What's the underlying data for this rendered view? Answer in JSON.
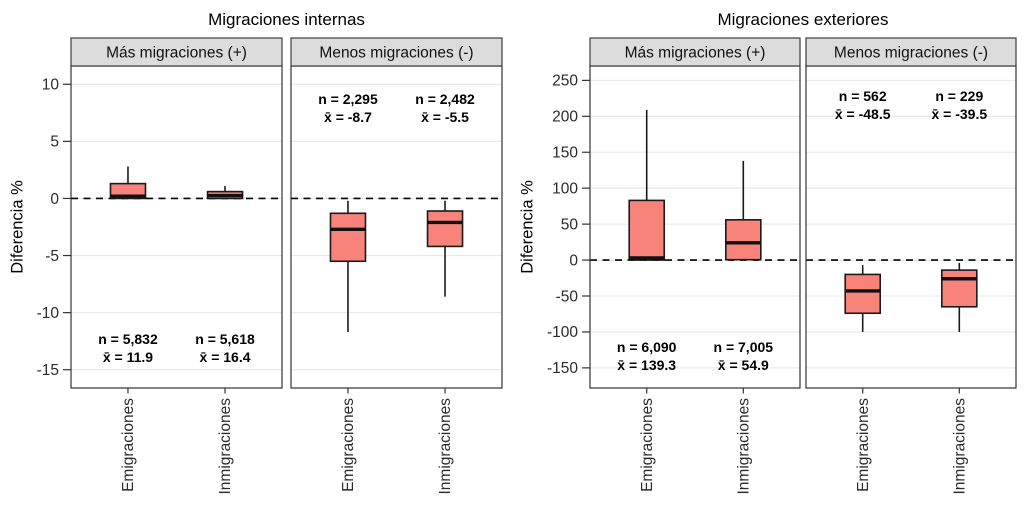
{
  "figure": {
    "background": "#ffffff",
    "box_fill": "#f8837a",
    "box_stroke": "#1a1a1a",
    "median_stroke": "#111111",
    "strip_fill": "#dcdcdc",
    "strip_stroke": "#3c3c3c",
    "strip_text_color": "#111111",
    "panel_stroke": "#333333",
    "grid_color": "#e8e8e8",
    "zero_line_color": "#000000",
    "axis_text_color": "#2b2b2b",
    "axis_tick_color": "#333333",
    "title_color": "#000000",
    "annotation_color": "#000000"
  },
  "chart_data": [
    {
      "type": "boxplot",
      "title": "Migraciones internas",
      "ylabel": "Diferencia %",
      "xlabel": "",
      "ylim": [
        -16.6,
        11.6
      ],
      "yticks": [
        10,
        5,
        0,
        -5,
        -10,
        -15
      ],
      "grid": "major-horizontal",
      "legend": "none",
      "reference_line": {
        "y": 0,
        "style": "dashed"
      },
      "categories": [
        "Emigraciones",
        "Inmigraciones"
      ],
      "facets": [
        {
          "label": "Más migraciones (+)",
          "annotation_position": "bottom",
          "boxes": [
            {
              "category": "Emigraciones",
              "whisker_low": 0,
              "q1": 0,
              "median": 0.2,
              "q3": 1.3,
              "whisker_high": 2.8,
              "annotation": {
                "n": "n = 5,832",
                "mean": "x̄ = 11.9"
              }
            },
            {
              "category": "Inmigraciones",
              "whisker_low": 0,
              "q1": 0,
              "median": 0.25,
              "q3": 0.6,
              "whisker_high": 1.1,
              "annotation": {
                "n": "n = 5,618",
                "mean": "x̄ = 16.4"
              }
            }
          ]
        },
        {
          "label": "Menos migraciones (-)",
          "annotation_position": "top",
          "boxes": [
            {
              "category": "Emigraciones",
              "whisker_low": -11.7,
              "q1": -5.5,
              "median": -2.7,
              "q3": -1.3,
              "whisker_high": -0.2,
              "annotation": {
                "n": "n = 2,295",
                "mean": "x̄ = -8.7"
              }
            },
            {
              "category": "Inmigraciones",
              "whisker_low": -8.6,
              "q1": -4.2,
              "median": -2.1,
              "q3": -1.1,
              "whisker_high": -0.2,
              "annotation": {
                "n": "n = 2,482",
                "mean": "x̄ = -5.5"
              }
            }
          ]
        }
      ]
    },
    {
      "type": "boxplot",
      "title": "Migraciones exteriores",
      "ylabel": "Diferencia %",
      "xlabel": "",
      "ylim": [
        -178,
        270
      ],
      "yticks": [
        250,
        200,
        150,
        100,
        50,
        0,
        -50,
        -100,
        -150
      ],
      "grid": "major-horizontal",
      "legend": "none",
      "reference_line": {
        "y": 0,
        "style": "dashed"
      },
      "categories": [
        "Emigraciones",
        "Inmigraciones"
      ],
      "facets": [
        {
          "label": "Más migraciones (+)",
          "annotation_position": "bottom",
          "boxes": [
            {
              "category": "Emigraciones",
              "whisker_low": 0,
              "q1": 0,
              "median": 3,
              "q3": 83,
              "whisker_high": 209,
              "annotation": {
                "n": "n = 6,090",
                "mean": "x̄ = 139.3"
              }
            },
            {
              "category": "Inmigraciones",
              "whisker_low": 0.5,
              "q1": 0.5,
              "median": 24,
              "q3": 56,
              "whisker_high": 138,
              "annotation": {
                "n": "n = 7,005",
                "mean": "x̄ = 54.9"
              }
            }
          ]
        },
        {
          "label": "Menos migraciones (-)",
          "annotation_position": "top",
          "boxes": [
            {
              "category": "Emigraciones",
              "whisker_low": -100,
              "q1": -74,
              "median": -43,
              "q3": -20,
              "whisker_high": -7,
              "annotation": {
                "n": "n = 562",
                "mean": "x̄ = -48.5"
              }
            },
            {
              "category": "Inmigraciones",
              "whisker_low": -100,
              "q1": -65,
              "median": -26,
              "q3": -14,
              "whisker_high": -4,
              "annotation": {
                "n": "n = 229",
                "mean": "x̄ = -39.5"
              }
            }
          ]
        }
      ]
    }
  ]
}
